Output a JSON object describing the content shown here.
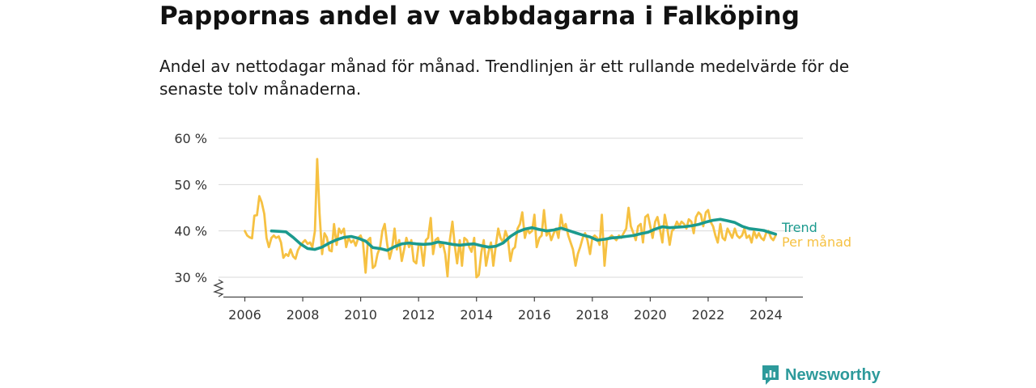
{
  "chart_data": {
    "type": "line",
    "title": "Pappornas andel av vabbdagarna i Falköping",
    "subtitle": "Andel av nettodagar månad för månad. Trendlinjen är ett rullande medelvärde för de senaste tolv månaderna.",
    "y_ticks": [
      "30 %",
      "40 %",
      "50 %",
      "60 %"
    ],
    "x_ticks": [
      "2006",
      "2008",
      "2010",
      "2012",
      "2014",
      "2016",
      "2018",
      "2020",
      "2022",
      "2024"
    ],
    "ylim": [
      30,
      60
    ],
    "xlim": [
      2005.6,
      2025.3
    ],
    "grid": true,
    "axis_break": true,
    "series": [
      {
        "name": "Per månad",
        "color": "#f6c142",
        "x": [
          2006.0,
          2006.08,
          2006.17,
          2006.25,
          2006.33,
          2006.42,
          2006.5,
          2006.58,
          2006.67,
          2006.75,
          2006.83,
          2006.92,
          2007.0,
          2007.08,
          2007.17,
          2007.25,
          2007.33,
          2007.42,
          2007.5,
          2007.58,
          2007.67,
          2007.75,
          2007.83,
          2007.92,
          2008.0,
          2008.08,
          2008.17,
          2008.25,
          2008.33,
          2008.42,
          2008.5,
          2008.58,
          2008.67,
          2008.75,
          2008.83,
          2008.92,
          2009.0,
          2009.08,
          2009.17,
          2009.25,
          2009.33,
          2009.42,
          2009.5,
          2009.58,
          2009.67,
          2009.75,
          2009.83,
          2009.92,
          2010.0,
          2010.08,
          2010.17,
          2010.25,
          2010.33,
          2010.42,
          2010.5,
          2010.58,
          2010.67,
          2010.75,
          2010.83,
          2010.92,
          2011.0,
          2011.08,
          2011.17,
          2011.25,
          2011.33,
          2011.42,
          2011.5,
          2011.58,
          2011.67,
          2011.75,
          2011.83,
          2011.92,
          2012.0,
          2012.08,
          2012.17,
          2012.25,
          2012.33,
          2012.42,
          2012.5,
          2012.58,
          2012.67,
          2012.75,
          2012.83,
          2012.92,
          2013.0,
          2013.08,
          2013.17,
          2013.25,
          2013.33,
          2013.42,
          2013.5,
          2013.58,
          2013.67,
          2013.75,
          2013.83,
          2013.92,
          2014.0,
          2014.08,
          2014.17,
          2014.25,
          2014.33,
          2014.42,
          2014.5,
          2014.58,
          2014.67,
          2014.75,
          2014.83,
          2014.92,
          2015.0,
          2015.08,
          2015.17,
          2015.25,
          2015.33,
          2015.42,
          2015.5,
          2015.58,
          2015.67,
          2015.75,
          2015.83,
          2015.92,
          2016.0,
          2016.08,
          2016.17,
          2016.25,
          2016.33,
          2016.42,
          2016.5,
          2016.58,
          2016.67,
          2016.75,
          2016.83,
          2016.92,
          2017.0,
          2017.08,
          2017.17,
          2017.25,
          2017.33,
          2017.42,
          2017.5,
          2017.58,
          2017.67,
          2017.75,
          2017.83,
          2017.92,
          2018.0,
          2018.08,
          2018.17,
          2018.25,
          2018.33,
          2018.42,
          2018.5,
          2018.58,
          2018.67,
          2018.75,
          2018.83,
          2018.92,
          2019.0,
          2019.08,
          2019.17,
          2019.25,
          2019.33,
          2019.42,
          2019.5,
          2019.58,
          2019.67,
          2019.75,
          2019.83,
          2019.92,
          2020.0,
          2020.08,
          2020.17,
          2020.25,
          2020.33,
          2020.42,
          2020.5,
          2020.58,
          2020.67,
          2020.75,
          2020.83,
          2020.92,
          2021.0,
          2021.08,
          2021.17,
          2021.25,
          2021.33,
          2021.42,
          2021.5,
          2021.58,
          2021.67,
          2021.75,
          2021.83,
          2021.92,
          2022.0,
          2022.08,
          2022.17,
          2022.25,
          2022.33,
          2022.42,
          2022.5,
          2022.58,
          2022.67,
          2022.75,
          2022.83,
          2022.92,
          2023.0,
          2023.08,
          2023.17,
          2023.25,
          2023.33,
          2023.42,
          2023.5,
          2023.58,
          2023.67,
          2023.75,
          2023.83,
          2023.92,
          2024.0,
          2024.08,
          2024.17,
          2024.25,
          2024.33
        ],
        "values": [
          40.0,
          39.0,
          38.6,
          38.4,
          43.3,
          43.4,
          47.5,
          46.2,
          43.7,
          38.5,
          36.5,
          38.5,
          39.0,
          38.5,
          38.8,
          37.5,
          34.2,
          35.0,
          34.6,
          36.0,
          34.5,
          34.0,
          35.8,
          36.8,
          37.5,
          38.0,
          37.2,
          37.5,
          36.5,
          40.0,
          55.5,
          43.8,
          35.0,
          39.5,
          38.6,
          35.8,
          35.6,
          41.5,
          37.0,
          40.5,
          39.5,
          40.5,
          36.5,
          38.5,
          37.5,
          38.0,
          36.8,
          38.5,
          39.0,
          37.5,
          31.0,
          38.0,
          38.5,
          32.0,
          32.5,
          35.0,
          36.5,
          40.0,
          41.5,
          37.0,
          34.0,
          36.0,
          40.5,
          36.0,
          38.0,
          33.5,
          36.0,
          38.5,
          36.5,
          38.0,
          33.5,
          33.0,
          37.0,
          37.0,
          32.5,
          38.0,
          38.5,
          42.8,
          35.0,
          38.0,
          38.5,
          36.5,
          37.5,
          35.0,
          30.2,
          38.0,
          42.0,
          36.8,
          33.0,
          38.0,
          32.5,
          38.5,
          38.0,
          36.5,
          35.5,
          38.5,
          30.0,
          30.5,
          35.5,
          38.0,
          32.5,
          35.5,
          37.5,
          32.5,
          37.0,
          40.5,
          38.5,
          37.5,
          40.0,
          38.5,
          33.5,
          36.0,
          36.5,
          40.5,
          41.5,
          44.0,
          38.5,
          40.5,
          39.5,
          40.0,
          43.5,
          36.5,
          38.5,
          39.0,
          44.5,
          39.0,
          40.0,
          38.0,
          39.5,
          40.5,
          38.5,
          43.5,
          40.5,
          41.5,
          39.0,
          37.5,
          36.0,
          32.5,
          35.0,
          36.5,
          38.5,
          39.5,
          38.0,
          35.0,
          38.5,
          39.0,
          38.5,
          37.0,
          43.5,
          32.5,
          38.0,
          38.5,
          39.0,
          38.5,
          38.0,
          39.0,
          38.5,
          39.5,
          40.5,
          45.0,
          41.0,
          39.5,
          38.0,
          41.0,
          41.5,
          37.5,
          43.0,
          43.5,
          41.0,
          38.5,
          42.0,
          43.0,
          40.5,
          37.5,
          43.5,
          41.0,
          37.0,
          40.0,
          40.5,
          42.0,
          41.0,
          42.0,
          41.5,
          40.5,
          42.5,
          42.0,
          39.5,
          43.0,
          44.0,
          43.5,
          41.0,
          44.0,
          44.5,
          42.0,
          41.0,
          39.0,
          37.5,
          41.5,
          38.5,
          38.0,
          40.5,
          39.5,
          38.5,
          40.5,
          39.0,
          38.5,
          39.0,
          40.5,
          38.5,
          39.0,
          37.5,
          40.0,
          38.5,
          39.5,
          38.5,
          38.0,
          39.5,
          40.0,
          38.5,
          38.0,
          39.0
        ]
      },
      {
        "name": "Trend",
        "color": "#1b9a8e",
        "x": [
          2006.92,
          2007.17,
          2007.42,
          2007.67,
          2007.92,
          2008.17,
          2008.42,
          2008.67,
          2008.92,
          2009.17,
          2009.42,
          2009.67,
          2009.92,
          2010.17,
          2010.42,
          2010.67,
          2010.92,
          2011.17,
          2011.42,
          2011.67,
          2011.92,
          2012.17,
          2012.42,
          2012.67,
          2012.92,
          2013.17,
          2013.42,
          2013.67,
          2013.92,
          2014.17,
          2014.42,
          2014.67,
          2014.92,
          2015.17,
          2015.42,
          2015.67,
          2015.92,
          2016.17,
          2016.42,
          2016.67,
          2016.92,
          2017.17,
          2017.42,
          2017.67,
          2017.92,
          2018.17,
          2018.42,
          2018.67,
          2018.92,
          2019.17,
          2019.42,
          2019.67,
          2019.92,
          2020.17,
          2020.42,
          2020.67,
          2020.92,
          2021.17,
          2021.42,
          2021.67,
          2021.92,
          2022.17,
          2022.42,
          2022.67,
          2022.92,
          2023.17,
          2023.42,
          2023.67,
          2023.92,
          2024.17,
          2024.33
        ],
        "values": [
          40.0,
          39.9,
          39.8,
          38.6,
          37.2,
          36.2,
          36.0,
          36.5,
          37.4,
          38.1,
          38.6,
          38.8,
          38.4,
          37.8,
          36.4,
          36.2,
          35.8,
          36.6,
          37.2,
          37.4,
          37.2,
          37.1,
          37.2,
          37.6,
          37.4,
          37.1,
          36.9,
          37.1,
          37.2,
          36.8,
          36.5,
          36.7,
          37.4,
          38.8,
          39.8,
          40.4,
          40.7,
          40.3,
          40.0,
          40.2,
          40.6,
          40.1,
          39.6,
          39.1,
          38.7,
          38.0,
          38.2,
          38.5,
          38.6,
          38.8,
          39.0,
          39.4,
          39.7,
          40.4,
          40.9,
          40.7,
          40.8,
          40.9,
          41.1,
          41.4,
          41.9,
          42.3,
          42.5,
          42.2,
          41.8,
          41.0,
          40.5,
          40.3,
          40.1,
          39.6,
          39.3
        ]
      }
    ]
  },
  "legend": {
    "trend_label": "Trend",
    "monthly_label": "Per månad"
  },
  "colors": {
    "trend": "#1b9a8e",
    "monthly": "#f6c142",
    "grid": "#d9d9d9",
    "axis": "#444444",
    "brand": "#2d9a9b"
  },
  "brand": {
    "name": "Newsworthy",
    "icon": "newsworthy-logo-icon"
  }
}
